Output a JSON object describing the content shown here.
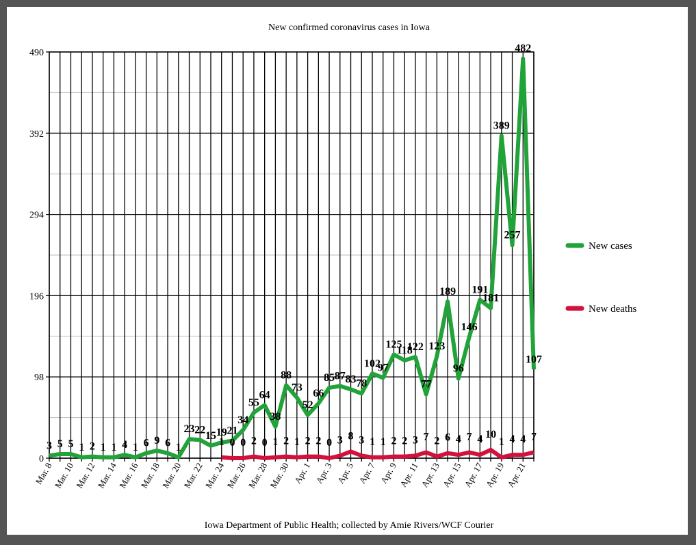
{
  "chart_data": {
    "type": "line",
    "title": "New confirmed coronavirus cases in Iowa",
    "note": "Iowa Department of Public Health; collected by Amie Rivers/WCF Courier",
    "categories": [
      "Mar. 8",
      null,
      "Mar. 10",
      null,
      "Mar. 12",
      null,
      "Mar. 14",
      null,
      "Mar. 16",
      null,
      "Mar. 18",
      null,
      "Mar. 20",
      null,
      "Mar. 22",
      null,
      "Mar. 24",
      null,
      "Mar. 26",
      null,
      "Mar. 28",
      null,
      "Mar. 30",
      null,
      "Apr. 1",
      null,
      "Apr. 3",
      null,
      "Apr. 5",
      null,
      "Apr. 7",
      null,
      "Apr. 9",
      null,
      "Apr. 11",
      null,
      "Apr. 13",
      null,
      "Apr. 15",
      null,
      "Apr. 17",
      null,
      "Apr. 19",
      null,
      "Apr. 21",
      null
    ],
    "series": [
      {
        "name": "New cases",
        "color": "#22a33a",
        "values": [
          3,
          5,
          5,
          1,
          2,
          1,
          1,
          4,
          1,
          6,
          9,
          6,
          1,
          23,
          22,
          15,
          19,
          21,
          34,
          55,
          64,
          38,
          88,
          73,
          52,
          66,
          85,
          87,
          83,
          78,
          102,
          97,
          125,
          118,
          122,
          77,
          123,
          189,
          96,
          146,
          191,
          181,
          389,
          257,
          482,
          107
        ]
      },
      {
        "name": "New deaths",
        "color": "#d2123c",
        "values": [
          null,
          null,
          null,
          null,
          null,
          null,
          null,
          null,
          null,
          null,
          null,
          null,
          null,
          null,
          null,
          null,
          1,
          0,
          0,
          2,
          0,
          1,
          2,
          1,
          2,
          2,
          0,
          3,
          8,
          3,
          1,
          1,
          2,
          2,
          3,
          7,
          2,
          6,
          4,
          7,
          4,
          10,
          1,
          4,
          4,
          7
        ]
      }
    ],
    "ylim": [
      0,
      490
    ],
    "yticks": [
      0,
      98,
      196,
      294,
      392,
      490
    ],
    "grid": true,
    "legend": "right"
  }
}
